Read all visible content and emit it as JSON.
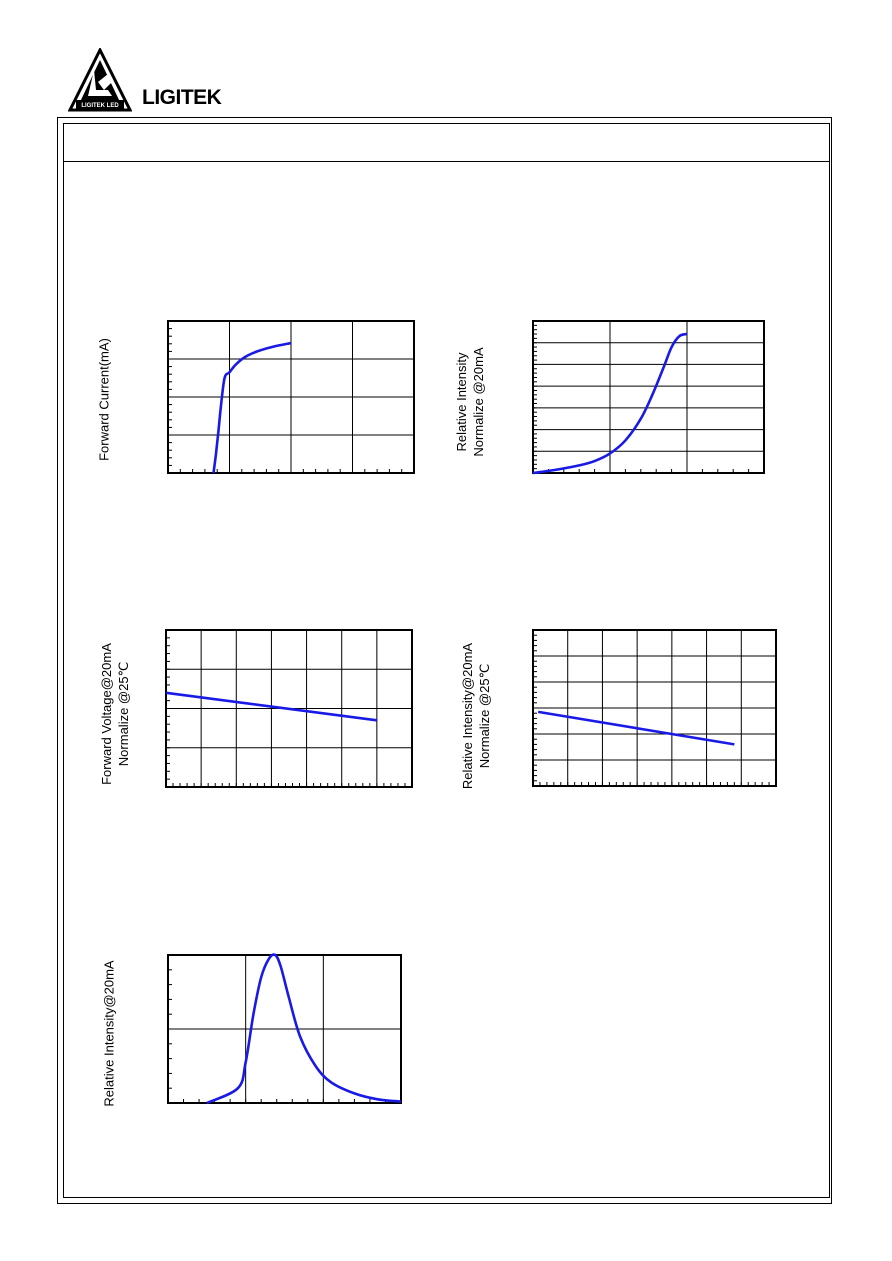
{
  "brand": {
    "name": "LIGITEK",
    "logo_text": "LIGITEK LED"
  },
  "chart_data": [
    {
      "id": "chart1",
      "type": "line",
      "title": "",
      "xlabel": "",
      "ylabel": "Forward Current(mA)",
      "xlim": [
        0,
        4
      ],
      "ylim": [
        0,
        4
      ],
      "grid": true,
      "x": [
        0.74,
        0.78,
        0.82,
        0.86,
        0.92,
        1.0,
        1.1,
        1.25,
        1.45,
        1.7,
        2.0
      ],
      "y": [
        0.0,
        0.5,
        1.1,
        1.75,
        2.5,
        2.65,
        2.85,
        3.05,
        3.2,
        3.32,
        3.42
      ]
    },
    {
      "id": "chart2",
      "type": "line",
      "title": "",
      "xlabel": "",
      "ylabel": "Relative Intensity",
      "ylabel2": "Normalize @20mA",
      "xlim": [
        0,
        3
      ],
      "ylim": [
        0,
        7
      ],
      "grid": true,
      "x": [
        0.0,
        0.3,
        0.6,
        0.8,
        1.0,
        1.2,
        1.4,
        1.55,
        1.7,
        1.8,
        1.9,
        2.0
      ],
      "y": [
        0.0,
        0.15,
        0.35,
        0.55,
        0.9,
        1.5,
        2.5,
        3.6,
        4.9,
        5.8,
        6.3,
        6.4
      ]
    },
    {
      "id": "chart3",
      "type": "line",
      "title": "",
      "xlabel": "",
      "ylabel": "Forward Voltage@20mA",
      "ylabel2": "Normalize @25℃",
      "xlim": [
        0,
        7
      ],
      "ylim": [
        0,
        4
      ],
      "grid": true,
      "x": [
        0,
        6
      ],
      "y": [
        2.4,
        1.7
      ]
    },
    {
      "id": "chart4",
      "type": "line",
      "title": "",
      "xlabel": "",
      "ylabel": "Relative Intensity@20mA",
      "ylabel2": "Normalize @25℃",
      "xlim": [
        0,
        7
      ],
      "ylim": [
        0,
        6
      ],
      "grid": true,
      "x": [
        0.15,
        5.8
      ],
      "y": [
        2.85,
        1.6
      ]
    },
    {
      "id": "chart5",
      "type": "line",
      "title": "",
      "xlabel": "",
      "ylabel": "Relative Intensity@20mA",
      "xlim": [
        0,
        3
      ],
      "ylim": [
        0,
        2
      ],
      "grid": true,
      "x": [
        0.5,
        0.9,
        1.0,
        1.1,
        1.2,
        1.3,
        1.38,
        1.45,
        1.55,
        1.7,
        1.9,
        2.1,
        2.4,
        2.7,
        3.0
      ],
      "y": [
        0.0,
        0.2,
        0.55,
        1.2,
        1.7,
        1.95,
        2.0,
        1.85,
        1.45,
        0.9,
        0.5,
        0.28,
        0.13,
        0.05,
        0.02
      ]
    }
  ]
}
